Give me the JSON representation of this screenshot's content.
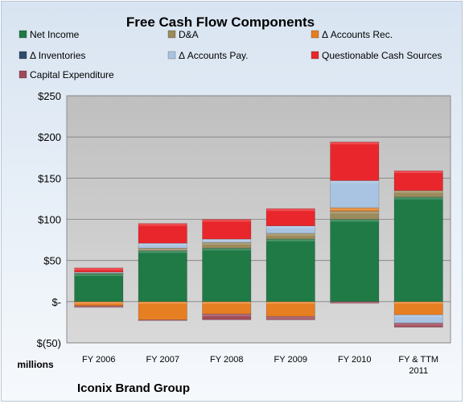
{
  "chart_data": {
    "type": "bar",
    "stacked": true,
    "title": "Free Cash Flow Components",
    "unit_label": "millions",
    "company": "Iconix Brand Group",
    "ylim": [
      -50,
      250
    ],
    "y_ticks": [
      250,
      200,
      150,
      100,
      50,
      0,
      -50
    ],
    "y_tick_labels": [
      "$250",
      "$200",
      "$150",
      "$100",
      "$50",
      "$-",
      "$(50)"
    ],
    "categories": [
      "FY 2006",
      "FY 2007",
      "FY 2008",
      "FY 2009",
      "FY 2010",
      "FY & TTM 2011"
    ],
    "category_lines": [
      [
        "FY 2006"
      ],
      [
        "FY 2007"
      ],
      [
        "FY 2008"
      ],
      [
        "FY 2009"
      ],
      [
        "FY 2010"
      ],
      [
        "FY & TTM",
        "2011"
      ]
    ],
    "legend_position": "top",
    "series": [
      {
        "name": "Net Income",
        "color": "#1f7a45",
        "values": [
          34,
          62,
          65,
          76,
          100,
          127
        ]
      },
      {
        "name": "D&A",
        "color": "#9b8a5c",
        "values": [
          1,
          3,
          7,
          7,
          10,
          8
        ]
      },
      {
        "name": "Δ Accounts Rec.",
        "color": "#e67e22",
        "values": [
          -5,
          -22,
          -15,
          -18,
          4,
          -16
        ]
      },
      {
        "name": "Δ Inventories",
        "color": "#2f4a6b",
        "values": [
          0,
          0,
          0,
          0,
          0,
          0
        ]
      },
      {
        "name": "Δ Accounts Pay.",
        "color": "#a9c3e2",
        "values": [
          1,
          6,
          4,
          9,
          33,
          -10
        ]
      },
      {
        "name": "Questionable Cash Sources",
        "color": "#e8262b",
        "values": [
          5,
          24,
          24,
          21,
          47,
          24
        ]
      },
      {
        "name": "Capital Expenditure",
        "color": "#a04a5a",
        "values": [
          -2,
          -1,
          -7,
          -4,
          -2,
          -5
        ]
      }
    ]
  }
}
